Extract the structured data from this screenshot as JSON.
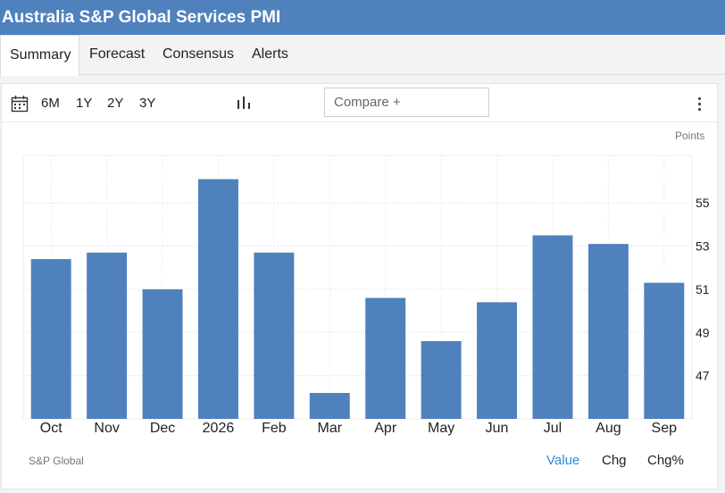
{
  "title": "Australia S&P Global Services PMI",
  "tabs": [
    {
      "label": "Summary",
      "active": true
    },
    {
      "label": "Forecast"
    },
    {
      "label": "Consensus"
    },
    {
      "label": "Alerts"
    }
  ],
  "toolbar": {
    "ranges": [
      "6M",
      "1Y",
      "2Y",
      "3Y"
    ],
    "compare_placeholder": "Compare +",
    "calendar_icon": "calendar-icon",
    "chart_type_icon": "bar-chart-icon",
    "menu_icon": "more-vertical-icon"
  },
  "units": "Points",
  "source": "S&P Global",
  "modes": [
    {
      "label": "Value",
      "active": true
    },
    {
      "label": "Chg"
    },
    {
      "label": "Chg%"
    }
  ],
  "colors": {
    "bar": "#4f81bd",
    "accent": "#2e8bd8",
    "header": "#4f81bd"
  },
  "chart_data": {
    "type": "bar",
    "categories": [
      "Oct",
      "Nov",
      "Dec",
      "2026",
      "Feb",
      "Mar",
      "Apr",
      "May",
      "Jun",
      "Jul",
      "Aug",
      "Sep"
    ],
    "values": [
      52.4,
      52.7,
      51.0,
      56.1,
      52.7,
      46.2,
      50.6,
      48.6,
      50.4,
      53.5,
      53.1,
      51.3
    ],
    "ylabel": "Points",
    "yticks": [
      47,
      49,
      51,
      53,
      55
    ],
    "ylim": [
      45.0,
      57.2
    ],
    "grid": true,
    "y_axis_side": "right"
  }
}
